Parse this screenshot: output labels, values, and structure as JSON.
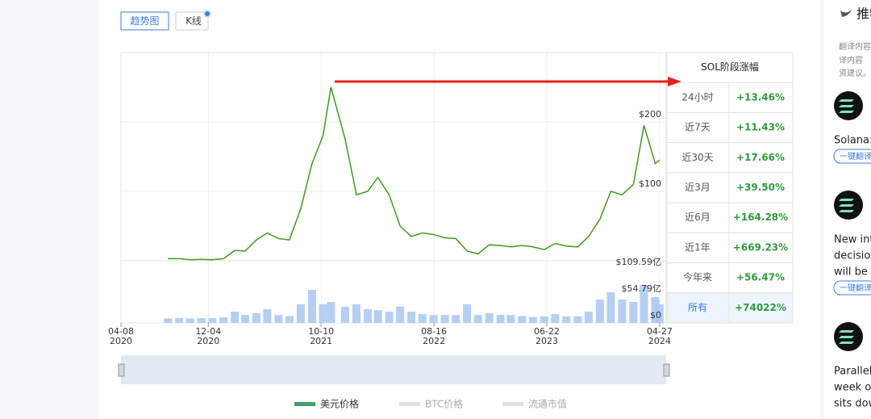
{
  "tabs": [
    "趋势图",
    "K线"
  ],
  "chart_data": {
    "type": "line",
    "x": [
      "2020-08-15",
      "2020-09-15",
      "2020-10-15",
      "2020-11-15",
      "2020-12-15",
      "2021-01-15",
      "2021-02-15",
      "2021-03-15",
      "2021-04-15",
      "2021-05-15",
      "2021-06-15",
      "2021-07-15",
      "2021-08-15",
      "2021-09-15",
      "2021-10-15",
      "2021-11-06",
      "2021-12-15",
      "2022-01-15",
      "2022-02-15",
      "2022-03-15",
      "2022-04-15",
      "2022-05-15",
      "2022-06-15",
      "2022-07-15",
      "2022-08-15",
      "2022-09-15",
      "2022-10-15",
      "2022-11-15",
      "2022-12-15",
      "2023-01-15",
      "2023-02-15",
      "2023-03-15",
      "2023-04-15",
      "2023-05-15",
      "2023-06-15",
      "2023-07-15",
      "2023-08-15",
      "2023-09-15",
      "2023-10-15",
      "2023-11-15",
      "2023-12-15",
      "2024-01-15",
      "2024-02-15",
      "2024-03-15",
      "2024-04-15",
      "2024-04-27"
    ],
    "series": [
      {
        "name": "美元价格",
        "color": "#3e9a1e",
        "values": [
          3,
          3,
          1.5,
          2,
          1.5,
          3,
          15,
          14,
          30,
          40,
          32,
          30,
          75,
          140,
          180,
          250,
          175,
          95,
          100,
          120,
          95,
          50,
          35,
          40,
          38,
          33,
          32,
          14,
          10,
          23,
          22,
          20,
          22,
          20,
          16,
          25,
          21,
          20,
          35,
          60,
          100,
          95,
          110,
          195,
          140,
          145
        ]
      }
    ],
    "volume": {
      "color": "#a9c6f2",
      "values": [
        1,
        2,
        1,
        1.5,
        1.5,
        3,
        15,
        8,
        12,
        20,
        8,
        6,
        30,
        60,
        30,
        35,
        25,
        30,
        20,
        18,
        15,
        25,
        15,
        10,
        8,
        8,
        8,
        30,
        8,
        12,
        8,
        8,
        6,
        4,
        5,
        10,
        5,
        5,
        15,
        40,
        55,
        40,
        35,
        70,
        45,
        30
      ]
    },
    "xlim": [
      "2020-04-08",
      "2024-05-15"
    ],
    "xticks": [
      {
        "value": "2020-04-08",
        "label": "04-08 2020"
      },
      {
        "value": "2020-12-04",
        "label": "12-04 2020"
      },
      {
        "value": "2021-10-10",
        "label": "10-10 2021"
      },
      {
        "value": "2022-08-16",
        "label": "08-16 2022"
      },
      {
        "value": "2023-06-22",
        "label": "06-22 2023"
      },
      {
        "value": "2024-04-27",
        "label": "04-27 2024"
      }
    ],
    "ylim": [
      0,
      300
    ],
    "yticks": [
      {
        "value": 100,
        "label": "$100"
      },
      {
        "value": 200,
        "label": "$200"
      }
    ],
    "y2lim": [
      0,
      120
    ],
    "y2ticks": [
      {
        "value": 0,
        "label": "$0"
      },
      {
        "value": 54.79,
        "label": "$54.79亿"
      },
      {
        "value": 109.59,
        "label": "$109.59亿"
      }
    ],
    "grid": true,
    "legend_inactive": [
      "BTC价格",
      "流通市值"
    ]
  },
  "stage_table": {
    "title": "SOL阶段涨幅",
    "rows": [
      [
        "24小时",
        "+13.46%"
      ],
      [
        "近7天",
        "+11.43%"
      ],
      [
        "近30天",
        "+17.66%"
      ],
      [
        "近3月",
        "+39.50%"
      ],
      [
        "近6月",
        "+164.28%"
      ],
      [
        "近1年",
        "+669.23%"
      ],
      [
        "今年来",
        "+56.47%"
      ],
      [
        "所有",
        "+74022%"
      ]
    ]
  },
  "sidebar": {
    "title": "推特",
    "notice": [
      "翻译内容",
      "译内容",
      "资建议。"
    ],
    "posts": [
      [
        "Solana:"
      ],
      [
        "New int",
        "decisior",
        "will be c"
      ],
      [
        "Parallel",
        "week or",
        "sits dow"
      ]
    ],
    "translate": "一键翻译"
  }
}
